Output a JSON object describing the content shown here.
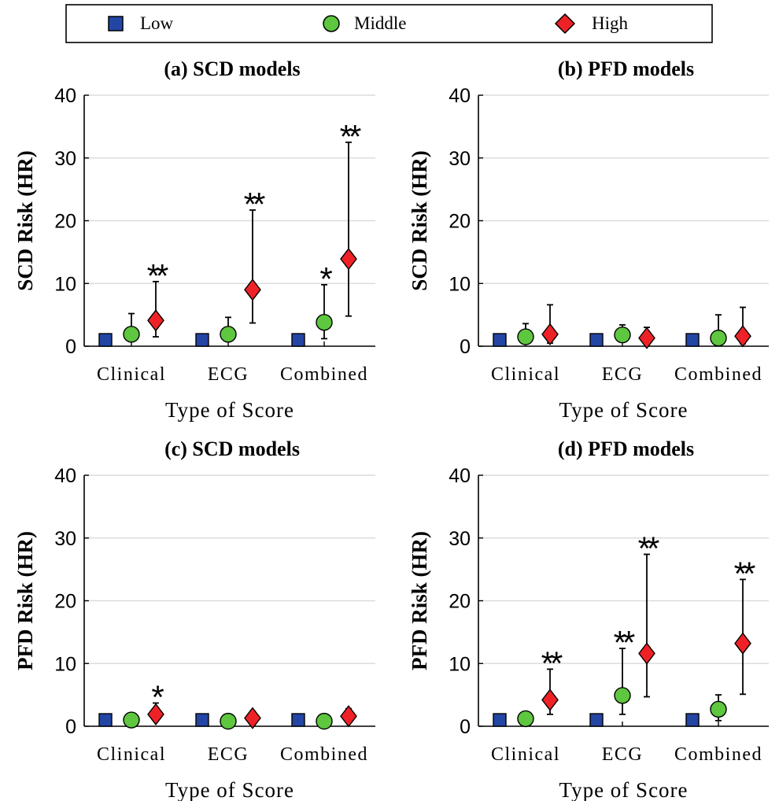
{
  "legend": {
    "items": [
      {
        "label": "Low",
        "marker": "square",
        "color": "#2346a5"
      },
      {
        "label": "Middle",
        "marker": "circle",
        "color": "#5ec63f"
      },
      {
        "label": "High",
        "marker": "diamond",
        "color": "#ee2226"
      }
    ]
  },
  "chart_data": [
    {
      "type": "scatter",
      "title": "(a) SCD models",
      "xlabel": "Type of Score",
      "ylabel": "SCD Risk (HR)",
      "categories": [
        "Clinical",
        "ECG",
        "Combined"
      ],
      "ylim": [
        0,
        40
      ],
      "yticks": [
        0,
        10,
        20,
        30,
        40
      ],
      "grid": true,
      "series": [
        {
          "name": "Low",
          "values": [
            1,
            1,
            1
          ],
          "lower": [
            1,
            1,
            1
          ],
          "upper": [
            1,
            1,
            1
          ],
          "marks": [
            "",
            "",
            ""
          ]
        },
        {
          "name": "Middle",
          "values": [
            1.9,
            1.9,
            3.8
          ],
          "lower": [
            0.8,
            0.9,
            1.2
          ],
          "upper": [
            5.2,
            4.6,
            9.8
          ],
          "marks": [
            "",
            "",
            "*"
          ]
        },
        {
          "name": "High",
          "values": [
            4.1,
            9.0,
            13.9
          ],
          "lower": [
            1.5,
            3.7,
            4.8
          ],
          "upper": [
            10.3,
            21.7,
            32.5
          ],
          "marks": [
            "**",
            "**",
            "**"
          ]
        }
      ]
    },
    {
      "type": "scatter",
      "title": "(b) PFD models",
      "xlabel": "Type of Score",
      "ylabel": "SCD Risk (HR)",
      "categories": [
        "Clinical",
        "ECG",
        "Combined"
      ],
      "ylim": [
        0,
        40
      ],
      "yticks": [
        0,
        10,
        20,
        30,
        40
      ],
      "grid": true,
      "series": [
        {
          "name": "Low",
          "values": [
            1,
            1,
            1
          ],
          "lower": [
            1,
            1,
            1
          ],
          "upper": [
            1,
            1,
            1
          ],
          "marks": [
            "",
            "",
            ""
          ]
        },
        {
          "name": "Middle",
          "values": [
            1.5,
            1.8,
            1.3
          ],
          "lower": [
            0.6,
            0.8,
            0.3
          ],
          "upper": [
            3.6,
            3.4,
            5.0
          ],
          "marks": [
            "",
            "",
            ""
          ]
        },
        {
          "name": "High",
          "values": [
            1.9,
            1.3,
            1.6
          ],
          "lower": [
            0.5,
            0.4,
            0.4
          ],
          "upper": [
            6.6,
            3.0,
            6.2
          ],
          "marks": [
            "",
            "",
            ""
          ]
        }
      ]
    },
    {
      "type": "scatter",
      "title": "(c) SCD models",
      "xlabel": "Type of Score",
      "ylabel": "PFD Risk (HR)",
      "categories": [
        "Clinical",
        "ECG",
        "Combined"
      ],
      "ylim": [
        0,
        40
      ],
      "yticks": [
        0,
        10,
        20,
        30,
        40
      ],
      "grid": true,
      "series": [
        {
          "name": "Low",
          "values": [
            1,
            1,
            1
          ],
          "lower": [
            1,
            1,
            1
          ],
          "upper": [
            1,
            1,
            1
          ],
          "marks": [
            "",
            "",
            ""
          ]
        },
        {
          "name": "Middle",
          "values": [
            1.0,
            0.8,
            0.8
          ],
          "lower": [
            0.7,
            0.5,
            0.5
          ],
          "upper": [
            1.5,
            1.3,
            1.3
          ],
          "marks": [
            "",
            "",
            ""
          ]
        },
        {
          "name": "High",
          "values": [
            1.9,
            1.3,
            1.6
          ],
          "lower": [
            1.0,
            0.7,
            0.8
          ],
          "upper": [
            3.7,
            2.4,
            2.8
          ],
          "marks": [
            "*",
            "",
            ""
          ]
        }
      ]
    },
    {
      "type": "scatter",
      "title": "(d) PFD models",
      "xlabel": "Type of Score",
      "ylabel": "PFD Risk (HR)",
      "categories": [
        "Clinical",
        "ECG",
        "Combined"
      ],
      "ylim": [
        0,
        40
      ],
      "yticks": [
        0,
        10,
        20,
        30,
        40
      ],
      "grid": true,
      "series": [
        {
          "name": "Low",
          "values": [
            1,
            1,
            1
          ],
          "lower": [
            1,
            1,
            1
          ],
          "upper": [
            1,
            1,
            1
          ],
          "marks": [
            "",
            "",
            ""
          ]
        },
        {
          "name": "Middle",
          "values": [
            1.2,
            4.9,
            2.7
          ],
          "lower": [
            0.7,
            1.9,
            0.9
          ],
          "upper": [
            1.8,
            12.4,
            5.0
          ],
          "marks": [
            "",
            "**",
            ""
          ]
        },
        {
          "name": "High",
          "values": [
            4.2,
            11.6,
            13.2
          ],
          "lower": [
            1.9,
            4.7,
            5.1
          ],
          "upper": [
            9.1,
            27.4,
            23.4
          ],
          "marks": [
            "**",
            "**",
            "**"
          ]
        }
      ]
    }
  ]
}
